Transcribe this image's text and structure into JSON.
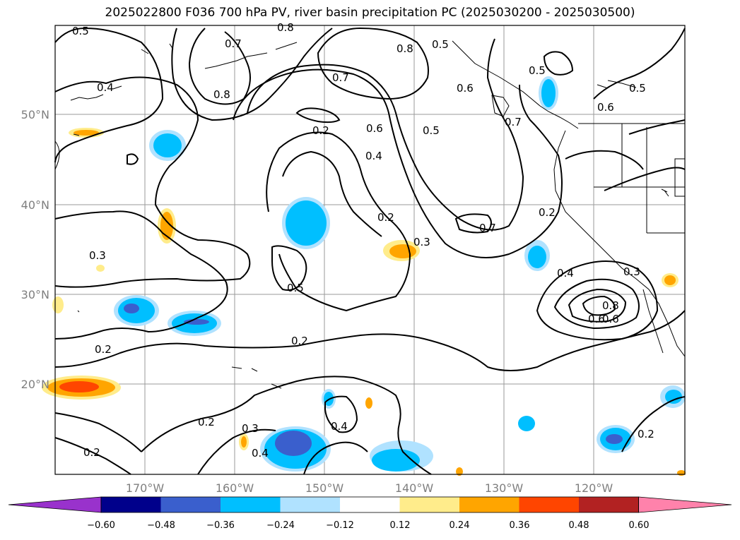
{
  "title": "2025022800 F036 700 hPa PV, river basin precipitation PC (2025030200 - 2025030500)",
  "lat_ticks": [
    "50°N",
    "40°N",
    "30°N",
    "20°N"
  ],
  "lon_ticks": [
    "170°W",
    "160°W",
    "150°W",
    "140°W",
    "130°W",
    "120°W"
  ],
  "contour_labels": [
    "0.5",
    "0.7",
    "0.8",
    "0.4",
    "0.8",
    "0.7",
    "0.8",
    "0.6",
    "0.5",
    "0.5",
    "0.5",
    "0.6",
    "0.2",
    "0.6",
    "0.4",
    "0.5",
    "0.7",
    "0.2",
    "0.3",
    "0.3",
    "0.5",
    "0.2",
    "0.7",
    "0.4",
    "0.3",
    "0.8",
    "0.6",
    "0.2",
    "0.2",
    "0.2",
    "0.3",
    "0.4",
    "0.4",
    "0.2",
    "0.2",
    "0.6"
  ],
  "colorbar": {
    "ticks": [
      "−0.60",
      "−0.48",
      "−0.36",
      "−0.24",
      "−0.12",
      "0.12",
      "0.24",
      "0.36",
      "0.48",
      "0.60"
    ],
    "colors": [
      "#9932cc",
      "#00008b",
      "#3a5fcd",
      "#00bfff",
      "#b0e2ff",
      "#ffffff",
      "#ffec8b",
      "#ffa500",
      "#ff4500",
      "#b22222",
      "#ff82ab"
    ]
  }
}
